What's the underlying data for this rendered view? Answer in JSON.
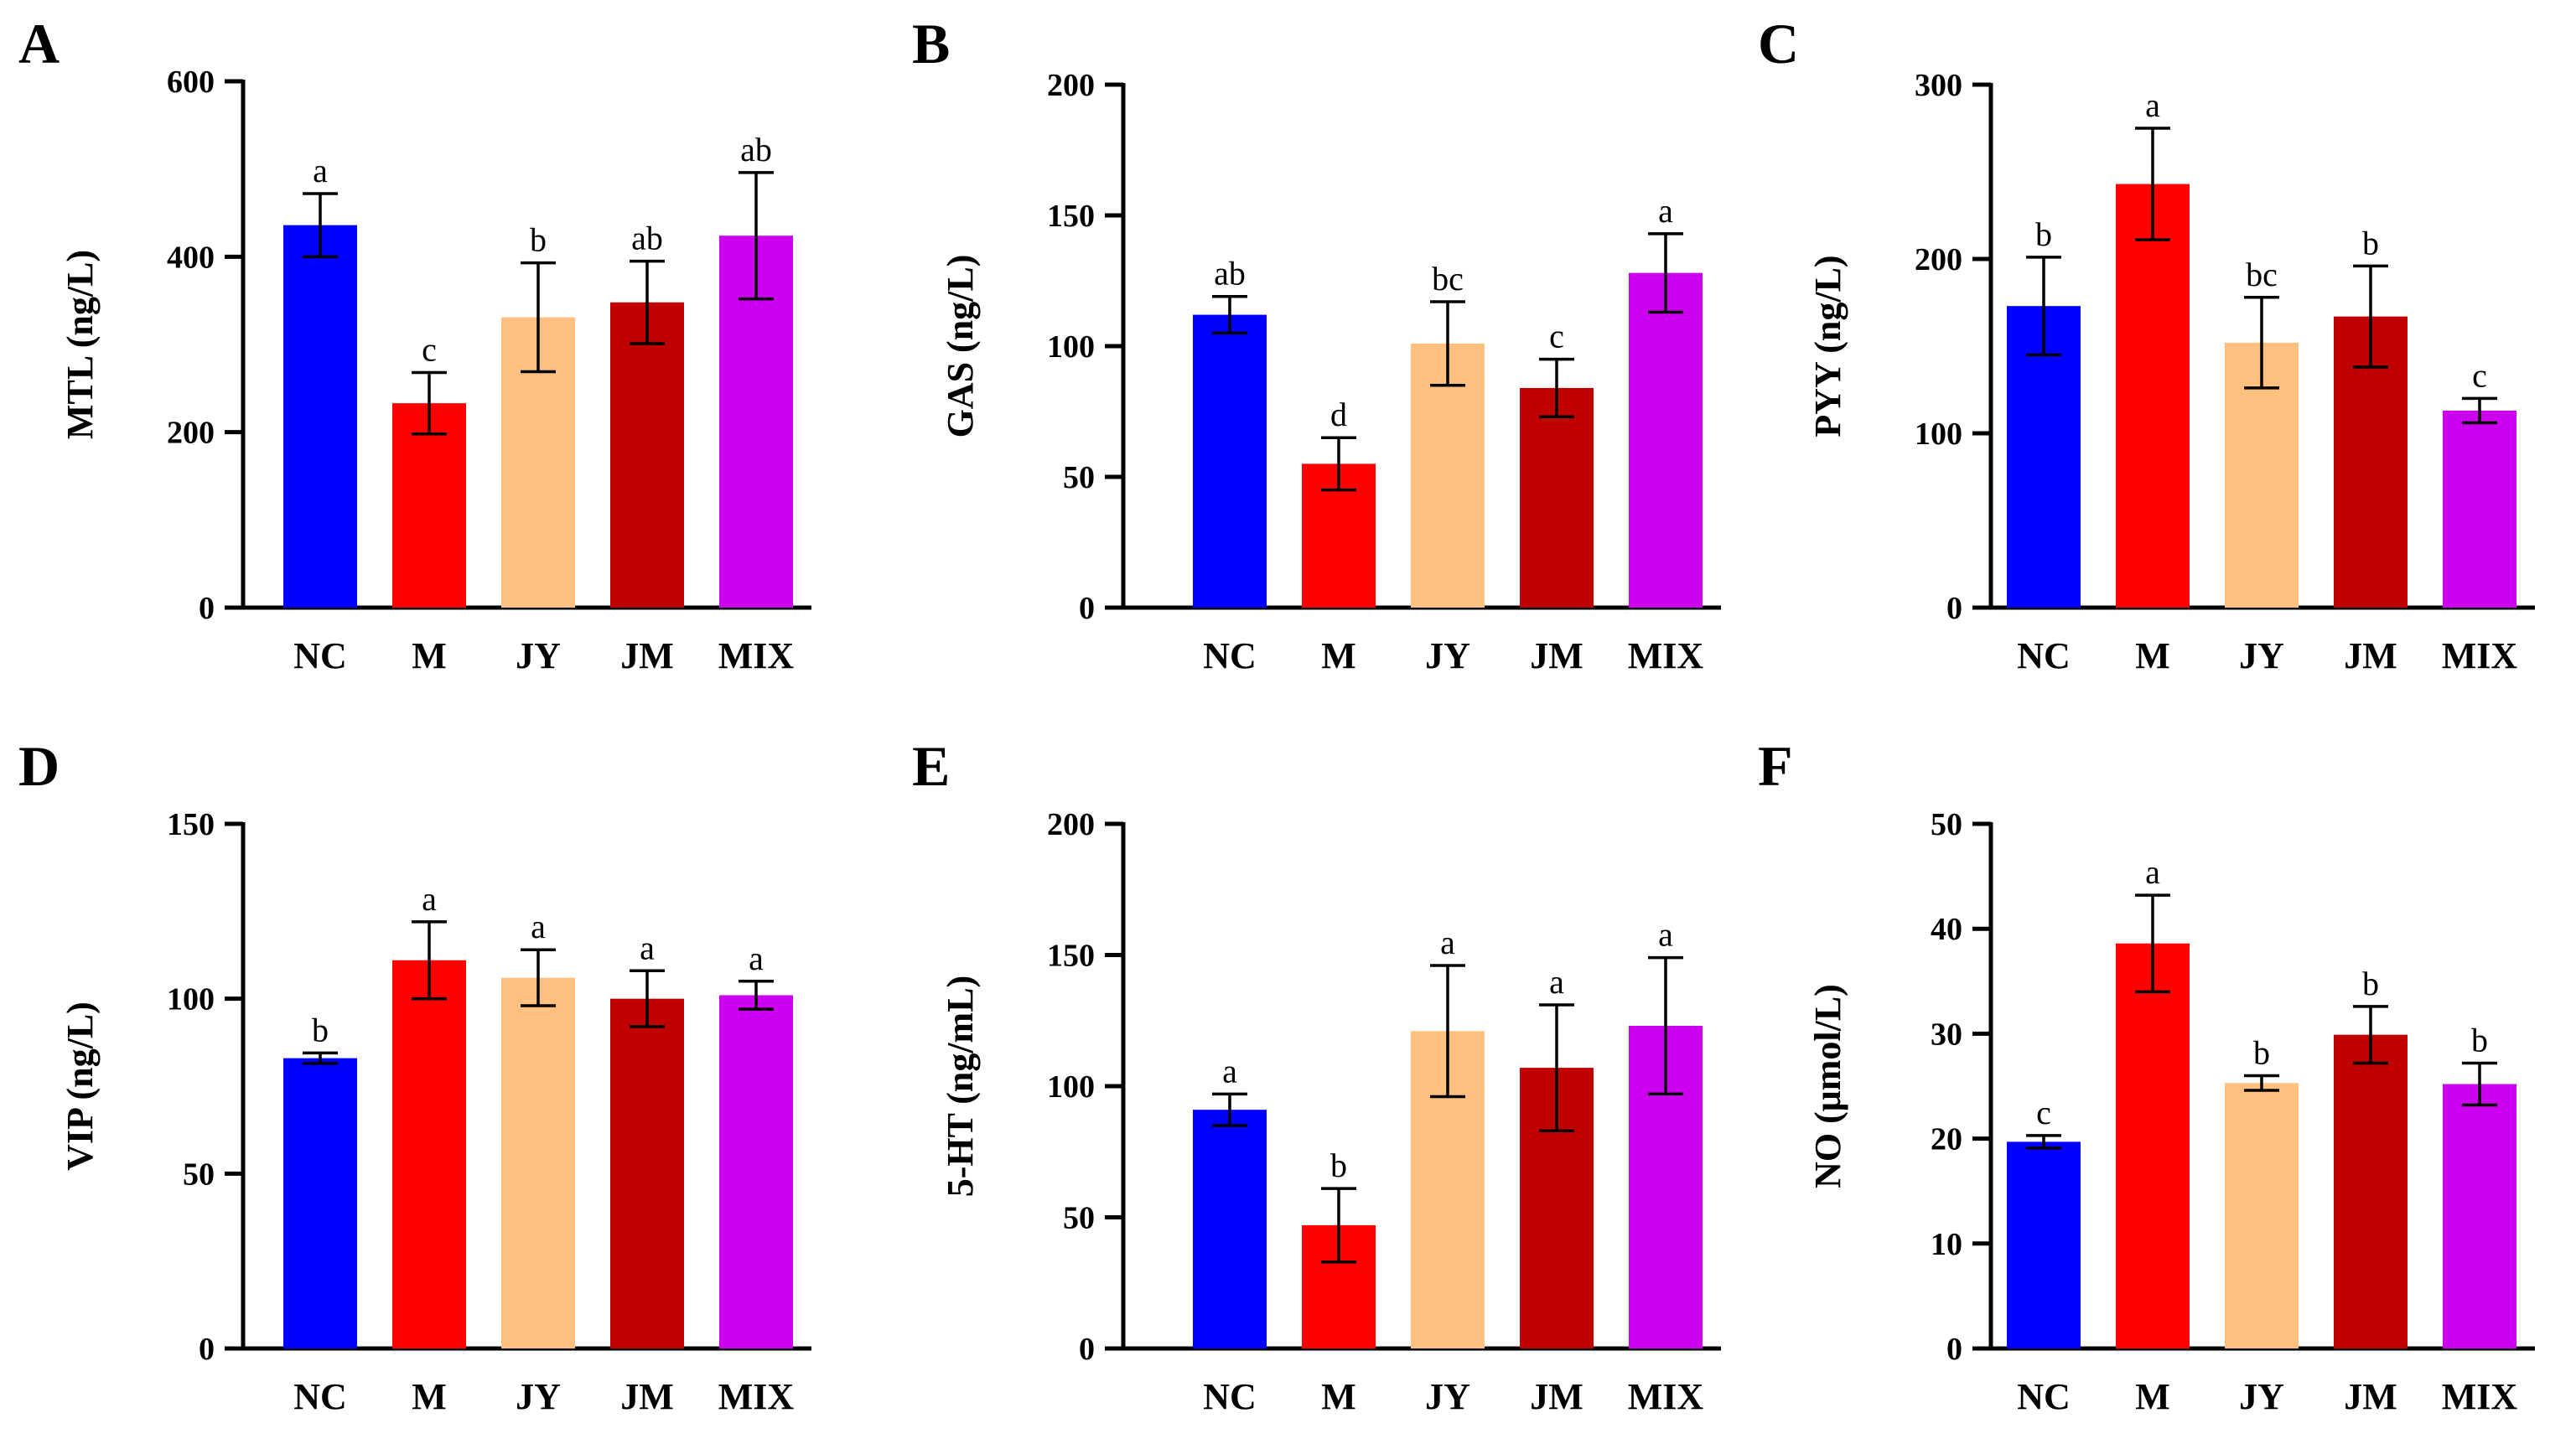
{
  "colors": {
    "NC": "#0000ff",
    "M": "#ff0000",
    "JY": "#ffc080",
    "JM": "#c00000",
    "MIX": "#cc00ee"
  },
  "chart_data": [
    {
      "panel": "A",
      "type": "bar",
      "ylabel": "MTL (ng/L)",
      "ylim": [
        0,
        600
      ],
      "yticks": [
        0,
        200,
        400,
        600
      ],
      "categories": [
        "NC",
        "M",
        "JY",
        "JM",
        "MIX"
      ],
      "values": [
        436,
        233,
        331,
        348,
        424
      ],
      "errors": [
        36,
        35,
        62,
        47,
        72
      ],
      "letters": [
        "a",
        "c",
        "b",
        "ab",
        "ab"
      ]
    },
    {
      "panel": "B",
      "type": "bar",
      "ylabel": "GAS (ng/L)",
      "ylim": [
        0,
        200
      ],
      "yticks": [
        0,
        50,
        100,
        150,
        200
      ],
      "categories": [
        "NC",
        "M",
        "JY",
        "JM",
        "MIX"
      ],
      "values": [
        112,
        55,
        101,
        84,
        128
      ],
      "errors": [
        7,
        10,
        16,
        11,
        15
      ],
      "letters": [
        "ab",
        "d",
        "bc",
        "c",
        "a"
      ]
    },
    {
      "panel": "C",
      "type": "bar",
      "ylabel": "PYY (ng/L)",
      "ylim": [
        0,
        300
      ],
      "yticks": [
        0,
        100,
        200,
        300
      ],
      "categories": [
        "NC",
        "M",
        "JY",
        "JM",
        "MIX"
      ],
      "values": [
        173,
        243,
        152,
        167,
        113
      ],
      "errors": [
        28,
        32,
        26,
        29,
        7
      ],
      "letters": [
        "b",
        "a",
        "bc",
        "b",
        "c"
      ]
    },
    {
      "panel": "D",
      "type": "bar",
      "ylabel": "VIP (ng/L)",
      "ylim": [
        0,
        150
      ],
      "yticks": [
        0,
        50,
        100,
        150
      ],
      "categories": [
        "NC",
        "M",
        "JY",
        "JM",
        "MIX"
      ],
      "values": [
        83,
        111,
        106,
        100,
        101
      ],
      "errors": [
        1.5,
        11,
        8,
        8,
        4
      ],
      "letters": [
        "b",
        "a",
        "a",
        "a",
        "a"
      ]
    },
    {
      "panel": "E",
      "type": "bar",
      "ylabel": "5-HT (ng/mL)",
      "ylim": [
        0,
        200
      ],
      "yticks": [
        0,
        50,
        100,
        150,
        200
      ],
      "categories": [
        "NC",
        "M",
        "JY",
        "JM",
        "MIX"
      ],
      "values": [
        91,
        47,
        121,
        107,
        123
      ],
      "errors": [
        6,
        14,
        25,
        24,
        26
      ],
      "letters": [
        "a",
        "b",
        "a",
        "a",
        "a"
      ]
    },
    {
      "panel": "F",
      "type": "bar",
      "ylabel": "NO (μmol/L)",
      "ylim": [
        0,
        50
      ],
      "yticks": [
        0,
        10,
        20,
        30,
        40,
        50
      ],
      "categories": [
        "NC",
        "M",
        "JY",
        "JM",
        "MIX"
      ],
      "values": [
        19.7,
        38.6,
        25.3,
        29.9,
        25.2
      ],
      "errors": [
        0.6,
        4.6,
        0.7,
        2.7,
        2.0
      ],
      "letters": [
        "c",
        "a",
        "b",
        "b",
        "b"
      ]
    }
  ]
}
